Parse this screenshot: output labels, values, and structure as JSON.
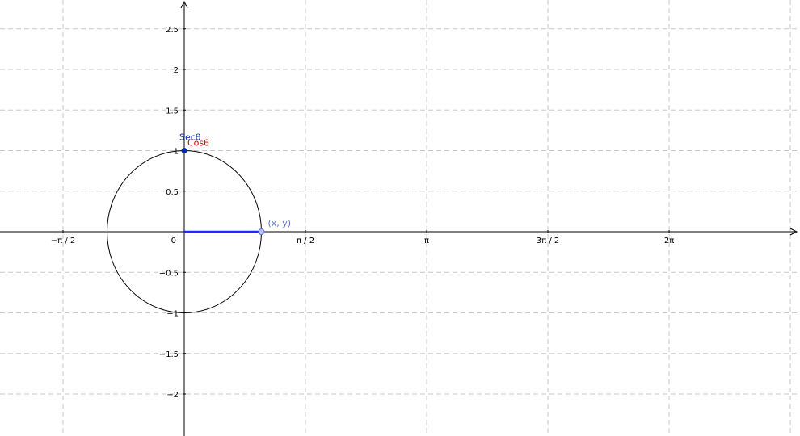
{
  "x_tick_labels": [
    {
      "value": -1.5707963,
      "label": "−π / 2"
    },
    {
      "value": 1.5707963,
      "label": "π / 2"
    },
    {
      "value": 3.1415927,
      "label": "π"
    },
    {
      "value": 4.712389,
      "label": "3π / 2"
    },
    {
      "value": 6.2831853,
      "label": "2π"
    }
  ],
  "origin_label": "0",
  "y_tick_labels": [
    {
      "value": 2.5,
      "label": "2.5"
    },
    {
      "value": 2,
      "label": "2"
    },
    {
      "value": 1.5,
      "label": "1.5"
    },
    {
      "value": 1,
      "label": "1"
    },
    {
      "value": 0.5,
      "label": "0.5"
    },
    {
      "value": -0.5,
      "label": "−0.5"
    },
    {
      "value": -1,
      "label": "−1"
    },
    {
      "value": -1.5,
      "label": "−1.5"
    },
    {
      "value": -2,
      "label": "−2"
    }
  ],
  "unit_circle": {
    "center": [
      0,
      0
    ],
    "radius": 1
  },
  "points": {
    "sec_point": {
      "x": 0,
      "y": 1,
      "color": "#0a2aa8"
    },
    "xy_point": {
      "x": 1,
      "y": 0,
      "color": "#5a6fd6"
    }
  },
  "labels": {
    "sec": "Secθ",
    "cos": "Cosθ",
    "xy": "(x, y)"
  },
  "segment": {
    "from": [
      0,
      0
    ],
    "to": [
      1,
      0
    ],
    "color": "#1a2cff"
  },
  "colors": {
    "sec_label": "#0a2aa8",
    "cos_label": "#cc0000",
    "xy_label": "#5a6fd6",
    "grid": "#c8c8c8",
    "axis": "#000000"
  }
}
